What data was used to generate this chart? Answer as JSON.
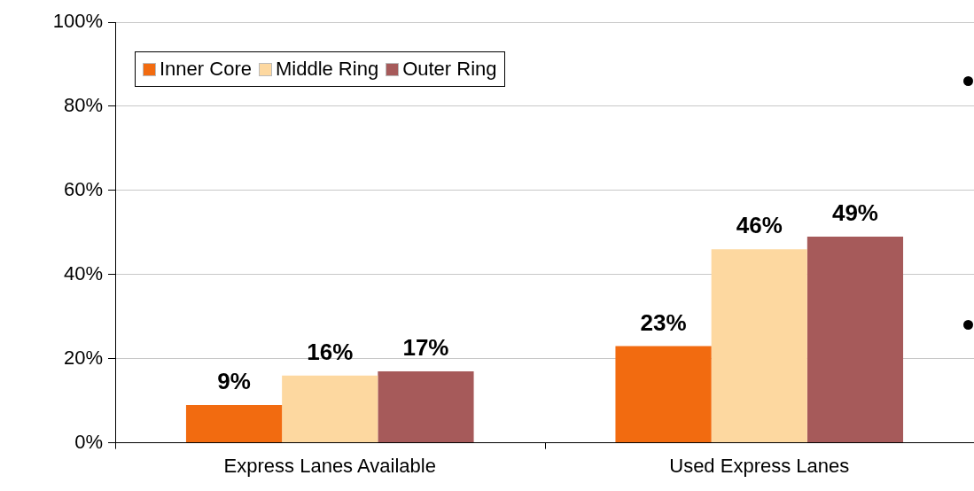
{
  "chart_data": {
    "type": "bar",
    "categories": [
      "Express Lanes Available",
      "Used Express Lanes"
    ],
    "series": [
      {
        "name": "Inner Core",
        "color": "#f26b10",
        "values": [
          9,
          23
        ]
      },
      {
        "name": "Middle Ring",
        "color": "#fdd8a0",
        "values": [
          16,
          46
        ]
      },
      {
        "name": "Outer Ring",
        "color": "#a65a5a",
        "values": [
          17,
          49
        ]
      }
    ],
    "ylim": [
      0,
      100
    ],
    "yticks": [
      {
        "value": 0,
        "label": "0%"
      },
      {
        "value": 20,
        "label": "20%"
      },
      {
        "value": 40,
        "label": "40%"
      },
      {
        "value": 60,
        "label": "60%"
      },
      {
        "value": 80,
        "label": "80%"
      },
      {
        "value": 100,
        "label": "100%"
      }
    ],
    "grid": "y",
    "legend": "top left",
    "value_labels": [
      [
        "9%",
        "23%"
      ],
      [
        "16%",
        "46%"
      ],
      [
        "17%",
        "49%"
      ]
    ]
  }
}
